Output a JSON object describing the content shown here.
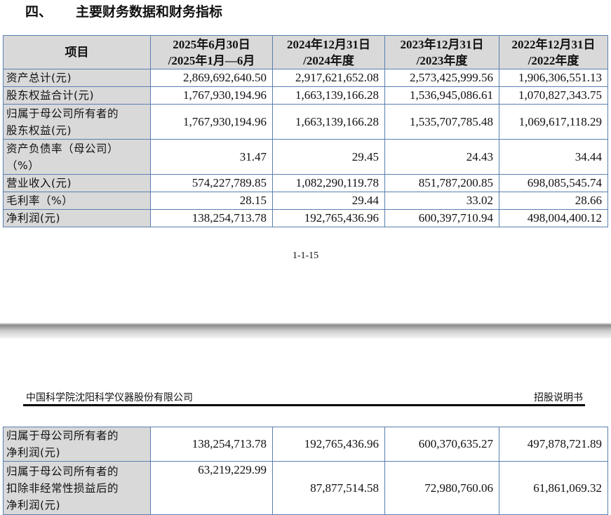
{
  "section": {
    "number": "四、",
    "title": "主要财务数据和财务指标"
  },
  "table1": {
    "headers": [
      {
        "l1": "项目",
        "l2": ""
      },
      {
        "l1": "2025年6月30日",
        "l2": "/2025年1月—6月"
      },
      {
        "l1": "2024年12月31日",
        "l2": "/2024年度"
      },
      {
        "l1": "2023年12月31日",
        "l2": "/2023年度"
      },
      {
        "l1": "2022年12月31日",
        "l2": "/2022年度"
      }
    ],
    "rows": [
      {
        "l1": "资产总计(元)",
        "l2": "",
        "values": [
          "2,869,692,640.50",
          "2,917,621,652.08",
          "2,573,425,999.56",
          "1,906,306,551.13"
        ]
      },
      {
        "l1": "股东权益合计(元)",
        "l2": "",
        "values": [
          "1,767,930,194.96",
          "1,663,139,166.28",
          "1,536,945,086.61",
          "1,070,827,343.75"
        ]
      },
      {
        "l1": "归属于母公司所有者的",
        "l2": "股东权益(元)",
        "values": [
          "1,767,930,194.96",
          "1,663,139,166.28",
          "1,535,707,785.48",
          "1,069,617,118.29"
        ]
      },
      {
        "l1": "资产负债率（母公司）",
        "l2": "（%）",
        "values": [
          "31.47",
          "29.45",
          "24.43",
          "34.44"
        ]
      },
      {
        "l1": "营业收入(元)",
        "l2": "",
        "values": [
          "574,227,789.85",
          "1,082,290,119.78",
          "851,787,200.85",
          "698,085,545.74"
        ]
      },
      {
        "l1": "毛利率（%）",
        "l2": "",
        "values": [
          "28.15",
          "29.44",
          "33.02",
          "28.66"
        ]
      },
      {
        "l1": "净利润(元)",
        "l2": "",
        "values": [
          "138,254,713.78",
          "192,765,436.96",
          "600,397,710.94",
          "498,004,400.12"
        ]
      }
    ]
  },
  "page_number": "1-1-15",
  "page_header": {
    "company": "中国科学院沈阳科学仪器股份有限公司",
    "doc_type": "招股说明书"
  },
  "table2": {
    "rows": [
      {
        "l1": "归属于母公司所有者的",
        "l2": "净利润(元)",
        "l3": "",
        "values": [
          "138,254,713.78",
          "192,765,436.96",
          "600,370,635.27",
          "497,878,721.89"
        ]
      },
      {
        "l1": "归属于母公司所有者的",
        "l2": "扣除非经常性损益后的",
        "l3": "净利润(元)",
        "values": [
          "63,219,229.99",
          "87,877,514.58",
          "72,980,760.06",
          "61,861,069.32"
        ]
      }
    ]
  }
}
